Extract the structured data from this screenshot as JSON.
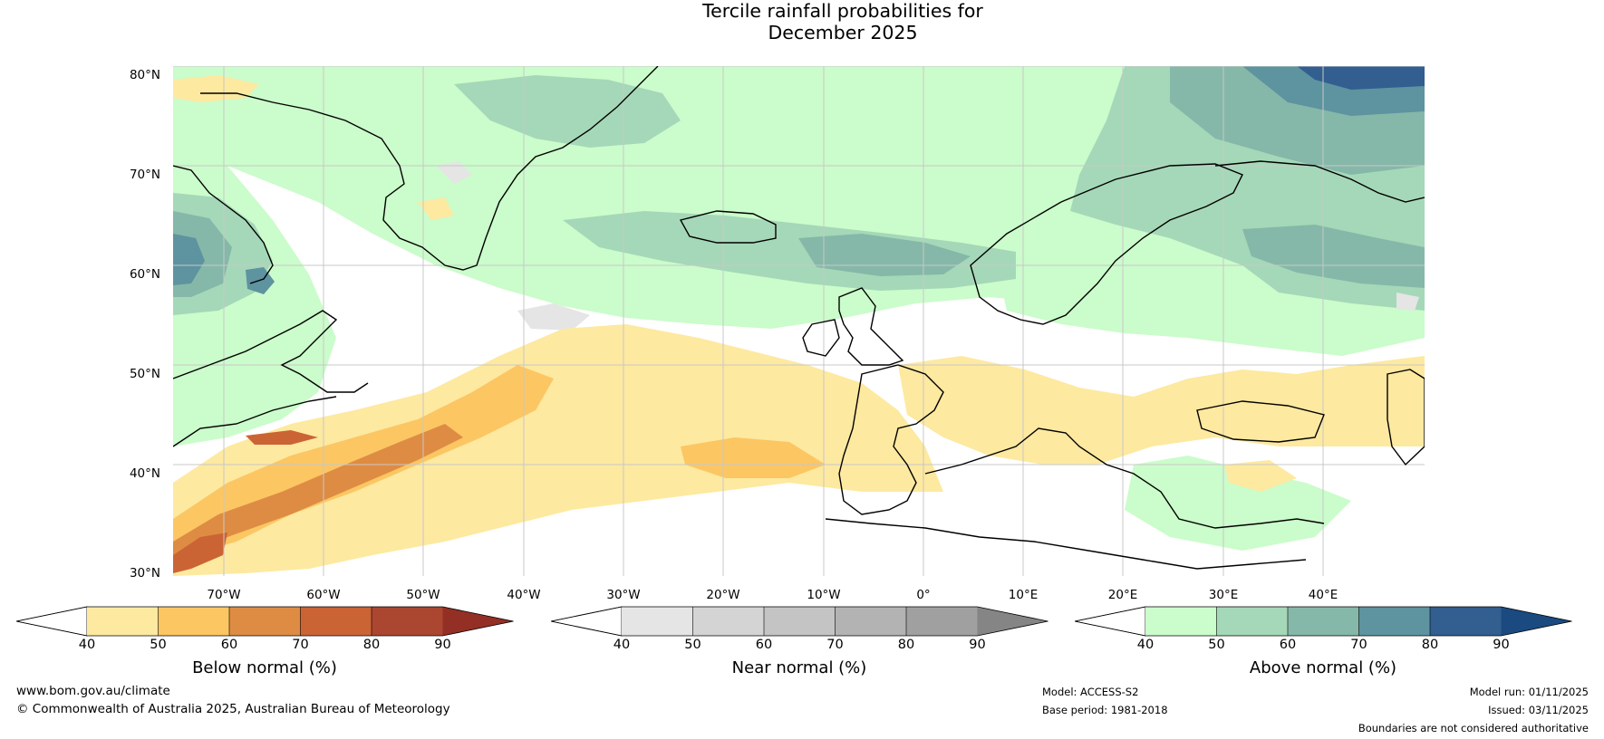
{
  "title": {
    "line1": "Tercile rainfall probabilities for",
    "line2": "December 2025"
  },
  "map": {
    "lat_labels": [
      "80°N",
      "70°N",
      "60°N",
      "50°N",
      "40°N",
      "30°N"
    ],
    "lon_labels": [
      "70°W",
      "60°W",
      "50°W",
      "40°W",
      "30°W",
      "20°W",
      "10°W",
      "0°",
      "10°E",
      "20°E",
      "30°E",
      "40°E"
    ]
  },
  "colorbars": [
    {
      "name": "below",
      "title": "Below normal (%)",
      "ticks": [
        "40",
        "50",
        "60",
        "70",
        "80",
        "90"
      ],
      "colors": [
        "#ffffff",
        "#fde9a0",
        "#fcc663",
        "#de8c43",
        "#cb6435",
        "#ab4630",
        "#932f24"
      ]
    },
    {
      "name": "near",
      "title": "Near normal (%)",
      "ticks": [
        "40",
        "50",
        "60",
        "70",
        "80",
        "90"
      ],
      "colors": [
        "#ffffff",
        "#e5e5e5",
        "#d4d4d4",
        "#c4c4c4",
        "#b3b3b3",
        "#a0a0a0",
        "#858585"
      ]
    },
    {
      "name": "above",
      "title": "Above normal (%)",
      "ticks": [
        "40",
        "50",
        "60",
        "70",
        "80",
        "90"
      ],
      "colors": [
        "#ffffff",
        "#cbfccb",
        "#a5d8b8",
        "#85b8a8",
        "#5e93a0",
        "#325e90",
        "#1a4a80"
      ]
    }
  ],
  "footer": {
    "website": "www.bom.gov.au/climate",
    "copyright": "© Commonwealth of Australia 2025, Australian Bureau of Meteorology",
    "model": "Model: ACCESS-S2",
    "base_period": "Base period: 1981-2018",
    "model_run": "Model run: 01/11/2025",
    "issued": "Issued: 03/11/2025",
    "disclaimer": "Boundaries are not considered authoritative"
  }
}
